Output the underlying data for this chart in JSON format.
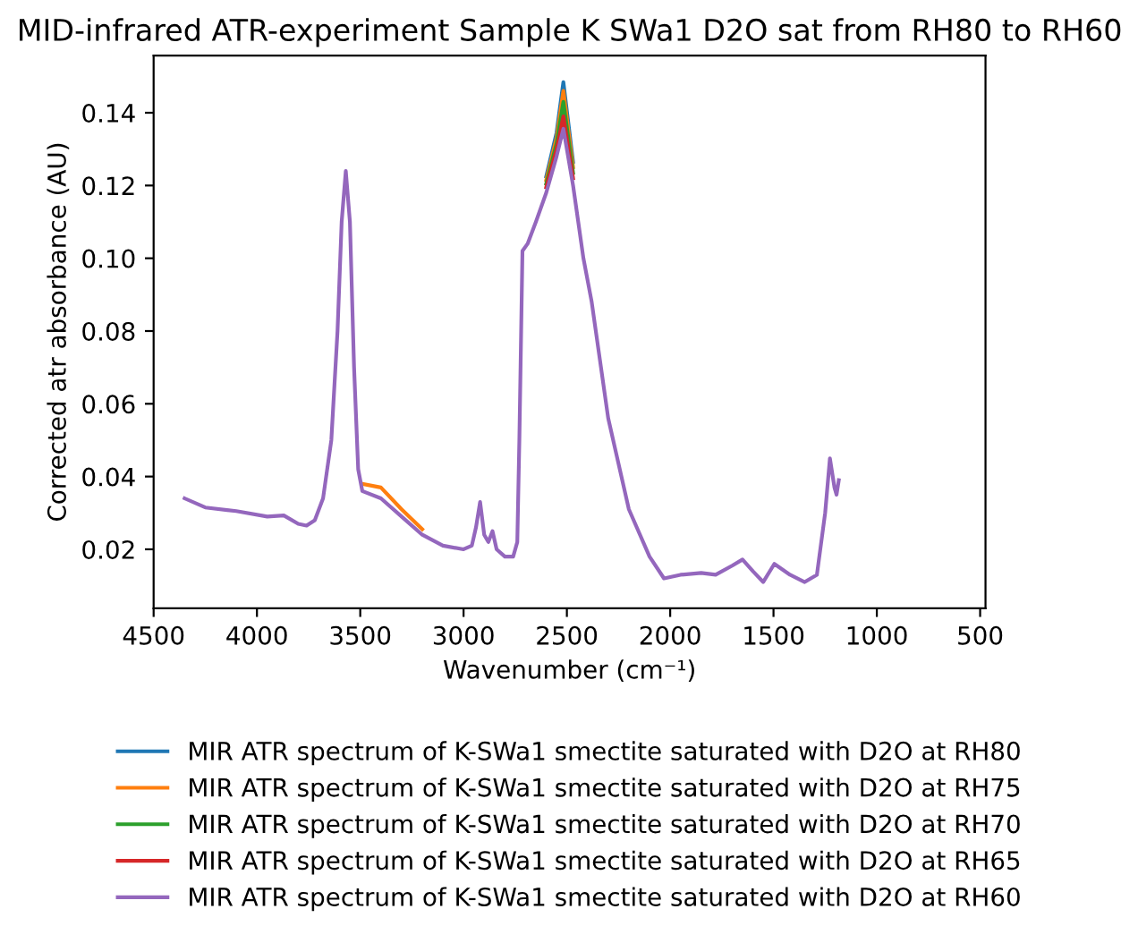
{
  "chart_data": {
    "type": "line",
    "title": "MID-infrared ATR-experiment Sample K SWa1 D2O sat from RH80 to RH60",
    "xlabel": "Wavenumber (cm⁻¹)",
    "ylabel": "Corrected atr absorbance (AU)",
    "x": [
      4350,
      4250,
      4100,
      3950,
      3870,
      3800,
      3760,
      3720,
      3680,
      3640,
      3610,
      3590,
      3570,
      3550,
      3530,
      3510,
      3490,
      3400,
      3300,
      3200,
      3100,
      3000,
      2960,
      2940,
      2920,
      2900,
      2880,
      2860,
      2840,
      2800,
      2760,
      2740,
      2730,
      2715,
      2690,
      2650,
      2600,
      2550,
      2517,
      2470,
      2420,
      2380,
      2300,
      2200,
      2100,
      2030,
      1950,
      1850,
      1780,
      1700,
      1650,
      1600,
      1550,
      1496,
      1420,
      1349,
      1290,
      1250,
      1227,
      1205,
      1195,
      1184
    ],
    "series": [
      {
        "name": "MIR ATR spectrum of K-SWa1 smectite saturated with D2O at RH80",
        "color": "#1f77b4",
        "values": [
          null,
          null,
          null,
          null,
          null,
          null,
          null,
          null,
          null,
          null,
          null,
          null,
          null,
          null,
          null,
          null,
          null,
          null,
          null,
          null,
          null,
          null,
          null,
          null,
          null,
          null,
          null,
          null,
          null,
          null,
          null,
          null,
          null,
          null,
          null,
          null,
          0.1225,
          0.1345,
          0.1484,
          0.1265,
          null,
          null,
          null,
          null,
          null,
          null,
          null,
          null,
          null,
          null,
          null,
          null,
          null,
          null,
          null,
          null,
          null,
          null,
          null,
          null,
          null,
          null
        ]
      },
      {
        "name": "MIR ATR spectrum of K-SWa1 smectite saturated with D2O at RH75",
        "color": "#ff7f0e",
        "values": [
          null,
          null,
          null,
          null,
          null,
          null,
          null,
          null,
          null,
          null,
          null,
          null,
          null,
          null,
          null,
          null,
          0.038,
          0.037,
          0.031,
          0.0255,
          null,
          null,
          null,
          null,
          null,
          null,
          null,
          null,
          null,
          null,
          null,
          null,
          null,
          null,
          null,
          null,
          0.1215,
          0.133,
          0.146,
          0.125,
          null,
          null,
          null,
          null,
          null,
          null,
          null,
          null,
          null,
          null,
          null,
          null,
          null,
          null,
          null,
          null,
          null,
          null,
          null,
          null,
          null,
          null
        ]
      },
      {
        "name": "MIR ATR spectrum of K-SWa1 smectite saturated with D2O at RH70",
        "color": "#2ca02c",
        "values": [
          null,
          null,
          null,
          null,
          null,
          null,
          null,
          null,
          null,
          null,
          null,
          null,
          null,
          null,
          null,
          null,
          null,
          null,
          null,
          null,
          null,
          null,
          null,
          null,
          null,
          null,
          null,
          null,
          null,
          null,
          null,
          null,
          null,
          null,
          null,
          null,
          0.1205,
          0.1315,
          0.143,
          0.1235,
          null,
          null,
          null,
          null,
          null,
          null,
          null,
          null,
          null,
          null,
          null,
          null,
          null,
          null,
          null,
          null,
          null,
          null,
          null,
          null,
          null,
          null
        ]
      },
      {
        "name": "MIR ATR spectrum of K-SWa1 smectite saturated with D2O at RH65",
        "color": "#d62728",
        "values": [
          null,
          null,
          null,
          null,
          null,
          null,
          null,
          null,
          null,
          null,
          null,
          null,
          null,
          null,
          null,
          null,
          null,
          null,
          null,
          null,
          null,
          null,
          null,
          null,
          null,
          null,
          null,
          null,
          null,
          null,
          null,
          null,
          null,
          null,
          null,
          null,
          0.1195,
          0.13,
          0.139,
          0.122,
          null,
          null,
          null,
          null,
          null,
          null,
          null,
          null,
          null,
          null,
          null,
          null,
          null,
          null,
          null,
          null,
          null,
          null,
          null,
          null,
          null,
          null
        ]
      },
      {
        "name": "MIR ATR spectrum of K-SWa1 smectite saturated with D2O at RH60",
        "color": "#9467bd",
        "values": [
          0.034,
          0.0315,
          0.0305,
          0.029,
          0.0293,
          0.027,
          0.0265,
          0.028,
          0.034,
          0.05,
          0.08,
          0.11,
          0.124,
          0.11,
          0.07,
          0.042,
          0.036,
          0.034,
          0.029,
          0.024,
          0.021,
          0.02,
          0.021,
          0.026,
          0.033,
          0.024,
          0.022,
          0.025,
          0.02,
          0.018,
          0.018,
          0.022,
          0.05,
          0.102,
          0.104,
          0.11,
          0.118,
          0.128,
          0.1356,
          0.12,
          0.1,
          0.088,
          0.056,
          0.031,
          0.018,
          0.012,
          0.013,
          0.0135,
          0.013,
          0.0155,
          0.0172,
          0.014,
          0.011,
          0.016,
          0.013,
          0.011,
          0.013,
          0.03,
          0.045,
          0.037,
          0.035,
          0.039
        ]
      }
    ],
    "xlim": [
      4500,
      474
    ],
    "xticks": [
      4500,
      4000,
      3500,
      3000,
      2500,
      2000,
      1500,
      1000,
      500
    ],
    "ylim": [
      0.0038,
      0.1557
    ],
    "yticks": [
      0.02,
      0.04,
      0.06,
      0.08,
      {
        "value": 0.1,
        "label": "0.10"
      },
      0.12,
      0.14
    ],
    "grid": false,
    "legend": "bottom"
  }
}
